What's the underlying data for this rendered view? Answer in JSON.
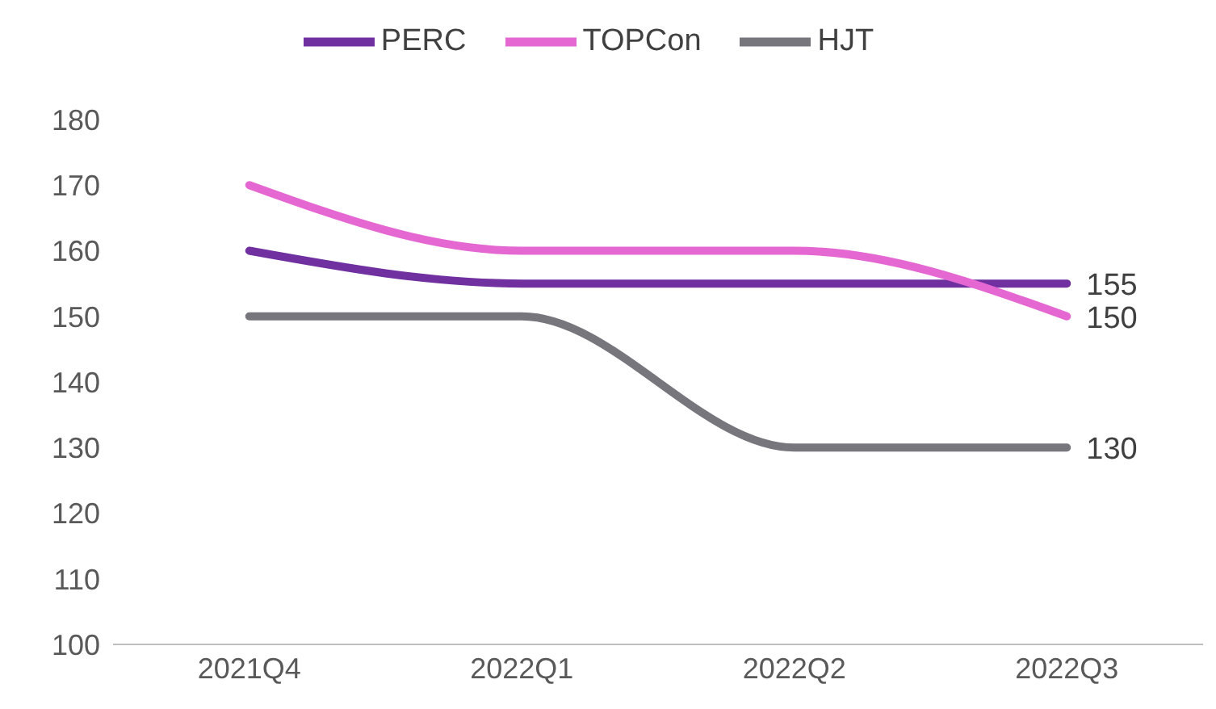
{
  "chart_data": {
    "type": "line",
    "categories": [
      "2021Q4",
      "2022Q1",
      "2022Q2",
      "2022Q3"
    ],
    "series": [
      {
        "name": "PERC",
        "color": "#7030a0",
        "values": [
          160,
          155,
          155,
          155
        ],
        "value_labels": [
          null,
          null,
          null,
          "155"
        ]
      },
      {
        "name": "TOPCon",
        "color": "#e467d2",
        "values": [
          170,
          160,
          160,
          150
        ],
        "value_labels": [
          null,
          null,
          null,
          "150"
        ]
      },
      {
        "name": "HJT",
        "color": "#76767c",
        "values": [
          150,
          150,
          130,
          130
        ],
        "value_labels": [
          null,
          null,
          null,
          "130"
        ]
      }
    ],
    "ylim": [
      100,
      180
    ],
    "yticks": [
      100,
      110,
      120,
      130,
      140,
      150,
      160,
      170,
      180
    ],
    "grid": false,
    "legend": "top",
    "marker": "none",
    "line_style": "solid"
  }
}
